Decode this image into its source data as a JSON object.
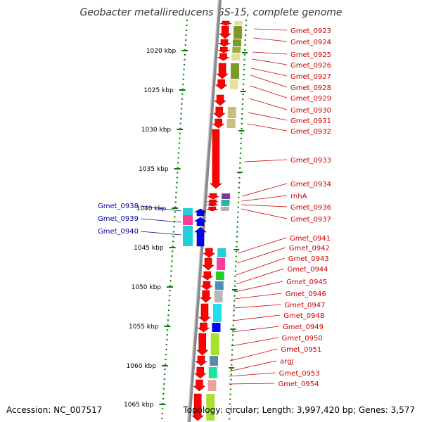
{
  "title": "Geobacter metallireducens GS-15, complete genome",
  "accession": "Accession: NC_007517",
  "summary": "Topology: circular; Length: 3,997,420 bp; Genes: 3,577",
  "ruler": {
    "ticks": [
      {
        "label": "1020 kbp"
      },
      {
        "label": "1025 kbp"
      },
      {
        "label": "1030 kbp"
      },
      {
        "label": "1035 kbp"
      },
      {
        "label": "1040 kbp"
      },
      {
        "label": "1045 kbp"
      },
      {
        "label": "1050 kbp"
      },
      {
        "label": "1055 kbp"
      },
      {
        "label": "1060 kbp"
      },
      {
        "label": "1065 kbp"
      }
    ]
  },
  "colors": {
    "forward_gene": "#ff0000",
    "reverse_gene": "#0000ff",
    "forward_label": "#cc0000",
    "reverse_label": "#000099",
    "ruler": "#008000"
  },
  "forward_genes": [
    {
      "label": "Gmet_0923"
    },
    {
      "label": "Gmet_0924"
    },
    {
      "label": "Gmet_0925"
    },
    {
      "label": "Gmet_0926"
    },
    {
      "label": "Gmet_0927"
    },
    {
      "label": "Gmet_0928"
    },
    {
      "label": "Gmet_0929"
    },
    {
      "label": "Gmet_0930"
    },
    {
      "label": "Gmet_0931"
    },
    {
      "label": "Gmet_0932"
    },
    {
      "label": "Gmet_0933"
    },
    {
      "label": "Gmet_0934"
    },
    {
      "label": "rnhA"
    },
    {
      "label": "Gmet_0936"
    },
    {
      "label": "Gmet_0937"
    },
    {
      "label": "Gmet_0941"
    },
    {
      "label": "Gmet_0942"
    },
    {
      "label": "Gmet_0943"
    },
    {
      "label": "Gmet_0944"
    },
    {
      "label": "Gmet_0945"
    },
    {
      "label": "Gmet_0946"
    },
    {
      "label": "Gmet_0947"
    },
    {
      "label": "Gmet_0948"
    },
    {
      "label": "Gmet_0949"
    },
    {
      "label": "Gmet_0950"
    },
    {
      "label": "Gmet_0951"
    },
    {
      "label": "argJ"
    },
    {
      "label": "Gmet_0953"
    },
    {
      "label": "Gmet_0954"
    }
  ],
  "reverse_genes": [
    {
      "label": "Gmet_0938"
    },
    {
      "label": "Gmet_0939"
    },
    {
      "label": "Gmet_0940"
    }
  ]
}
